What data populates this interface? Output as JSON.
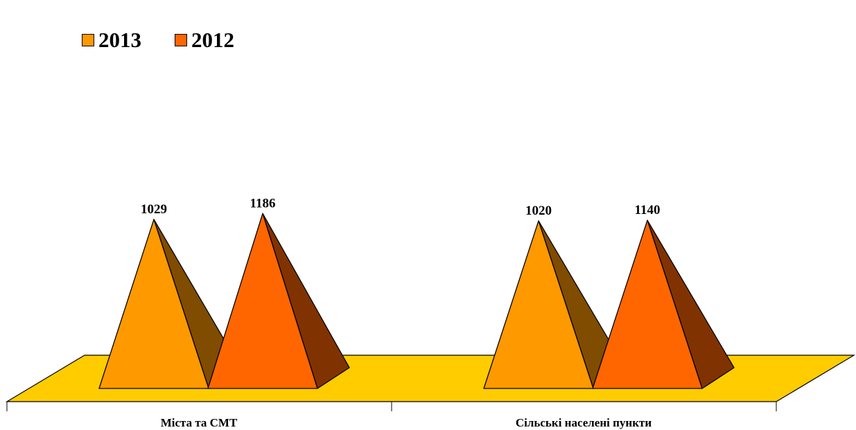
{
  "chart_data": {
    "type": "bar",
    "style": "3d-pyramid",
    "categories": [
      "Міста та СМТ",
      "Сільські населені пункти"
    ],
    "series": [
      {
        "name": "2013",
        "values": [
          1029,
          1020
        ],
        "color": "#FF9900",
        "side_color": "#7F4C00"
      },
      {
        "name": "2012",
        "values": [
          1186,
          1140
        ],
        "color": "#FF6600",
        "side_color": "#803300"
      }
    ],
    "floor_color": "#FFCC00",
    "data_labels": true,
    "legend_position": "top-left",
    "grid": false
  }
}
